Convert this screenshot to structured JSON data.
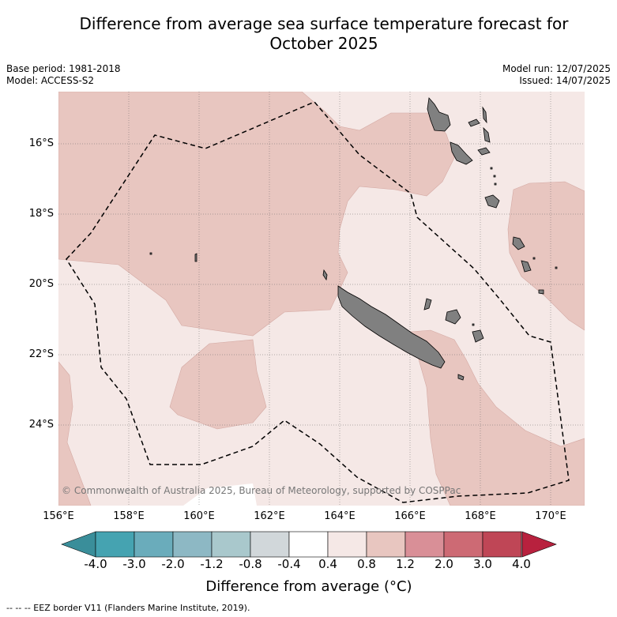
{
  "title_line1": "Difference from average sea surface temperature forecast for",
  "title_line2": "October 2025",
  "base_period": "Base period: 1981-2018",
  "model": "Model: ACCESS-S2",
  "model_run": "Model run: 12/07/2025",
  "issued": "Issued: 14/07/2025",
  "lat_labels": [
    "16°S",
    "18°S",
    "20°S",
    "22°S",
    "24°S"
  ],
  "lon_labels": [
    "156°E",
    "158°E",
    "160°E",
    "162°E",
    "164°E",
    "166°E",
    "168°E",
    "170°E"
  ],
  "colorbar": {
    "labels": [
      "-4.0",
      "-3.0",
      "-2.0",
      "-1.2",
      "-0.8",
      "-0.4",
      "0.4",
      "0.8",
      "1.2",
      "2.0",
      "3.0",
      "4.0"
    ],
    "colors": [
      "#3a8e9a",
      "#45a3b1",
      "#6aacbb",
      "#8db8c4",
      "#a9c8cc",
      "#d1d7da",
      "#ffffff",
      "#f5e8e6",
      "#e8c6c0",
      "#d98f97",
      "#cd6a74",
      "#bf4656",
      "#b8213e"
    ],
    "title": "Difference from average (°C)"
  },
  "map_colors": {
    "band_0_4_to_0_8": "#f5e8e6",
    "band_0_8_to_1_2": "#e8c6c0",
    "land": "#808080"
  },
  "copyright": "© Commonwealth of Australia 2025, Bureau of Meteorology, supported by COSPPac",
  "footnote": "--  --  -- EEZ border V11 (Flanders Marine Institute, 2019)."
}
